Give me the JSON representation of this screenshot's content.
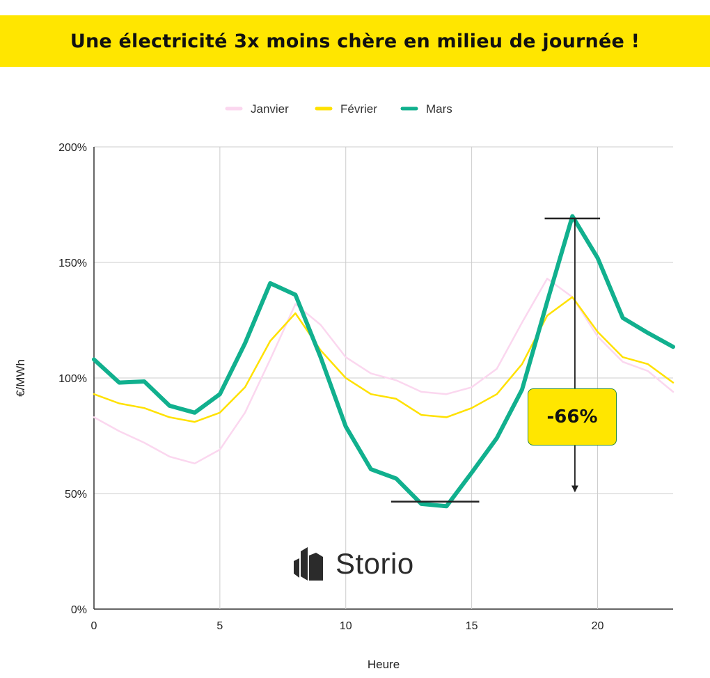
{
  "banner": {
    "title": "Une électricité 3x moins chère en milieu de journée !"
  },
  "colors": {
    "banner": "#ffe600",
    "janvier": "#fbd7ef",
    "fevrier": "#ffe100",
    "mars": "#11b08e"
  },
  "callout": {
    "text": "-66%"
  },
  "brand": {
    "name": "Storio",
    "logo_icon": "storio-logo-icon"
  },
  "chart_data": {
    "type": "line",
    "title": "",
    "xlabel": "Heure",
    "ylabel": "€/MWh",
    "xlim": [
      0,
      23
    ],
    "ylim": [
      0,
      200
    ],
    "x_ticks": [
      0,
      5,
      10,
      15,
      20
    ],
    "y_ticks": [
      0,
      50,
      100,
      150,
      200
    ],
    "y_tick_labels": [
      "0%",
      "50%",
      "100%",
      "150%",
      "200%"
    ],
    "grid": true,
    "legend_position": "top",
    "x": [
      0,
      1,
      2,
      3,
      4,
      5,
      6,
      7,
      8,
      9,
      10,
      11,
      12,
      13,
      14,
      15,
      16,
      17,
      18,
      19,
      20,
      21,
      22,
      23
    ],
    "series": [
      {
        "name": "Janvier",
        "values": [
          83,
          77,
          72,
          66,
          63,
          69,
          85,
          108,
          132,
          123,
          109,
          102,
          99,
          94,
          93,
          96,
          104,
          124,
          143,
          135,
          118,
          107,
          103,
          94
        ]
      },
      {
        "name": "Février",
        "values": [
          93,
          89,
          87,
          83,
          81,
          85,
          96,
          116,
          128,
          112,
          100,
          93,
          91,
          84,
          83,
          87,
          93,
          106,
          127,
          135,
          120,
          109,
          106,
          98
        ]
      },
      {
        "name": "Mars",
        "values": [
          108,
          98,
          98.5,
          88,
          85,
          93,
          115,
          141,
          136,
          109,
          79,
          60.5,
          56.5,
          45.5,
          44.5,
          59,
          74,
          95,
          133,
          170,
          152,
          126,
          119.5,
          113.5
        ]
      }
    ],
    "annotations": [
      {
        "type": "hline-marker",
        "x_from": 11.8,
        "x_to": 15.3,
        "y": 46.5
      },
      {
        "type": "hline-marker",
        "x_from": 17.9,
        "x_to": 20.1,
        "y": 169
      },
      {
        "type": "arrow",
        "x": 19.1,
        "y_from": 169,
        "y_to": 52,
        "label": "-66%"
      }
    ]
  }
}
